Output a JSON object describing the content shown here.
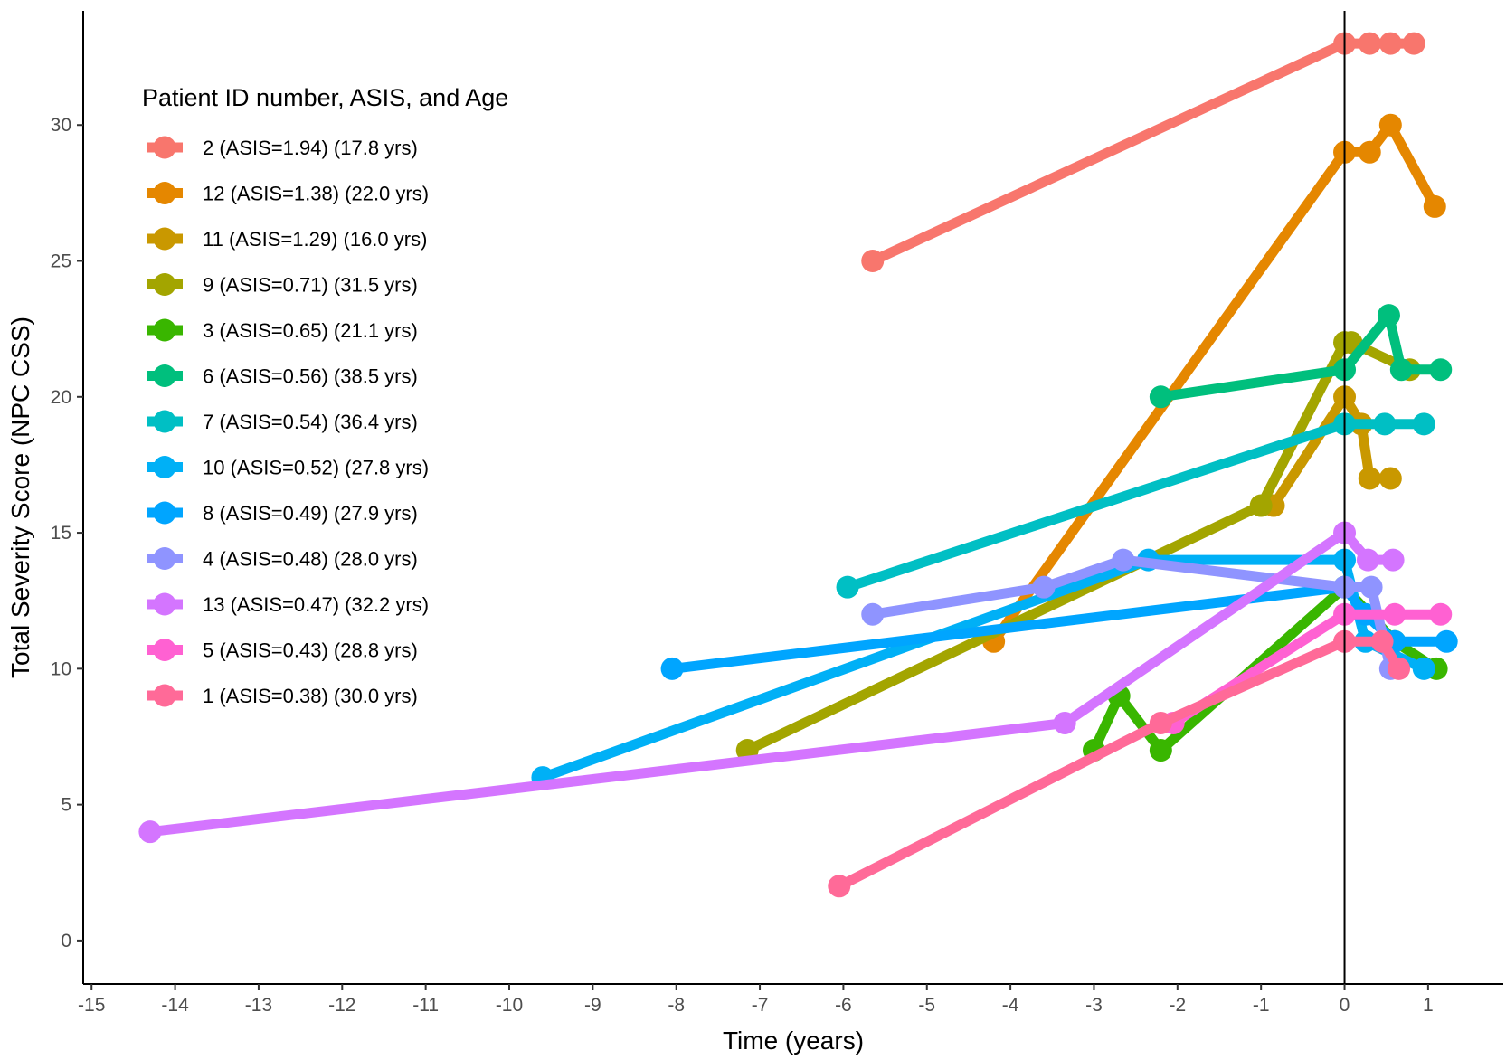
{
  "chart_data": {
    "type": "line",
    "xlabel": "Time (years)",
    "ylabel": "Total Severity Score (NPC CSS)",
    "xlim": [
      -15.1,
      1.9
    ],
    "ylim": [
      -1.6,
      34.2
    ],
    "x_ticks": [
      -15,
      -14,
      -13,
      -12,
      -11,
      -10,
      -9,
      -8,
      -7,
      -6,
      -5,
      -4,
      -3,
      -2,
      -1,
      0,
      1
    ],
    "y_ticks": [
      0,
      5,
      10,
      15,
      20,
      25,
      30
    ],
    "vline_x": 0,
    "grid": false,
    "legend": {
      "title": "Patient ID number, ASIS, and Age",
      "position": "top-left"
    },
    "series": [
      {
        "name": "2  (ASIS=1.94)  (17.8 yrs)",
        "color": "#F8766D",
        "x": [
          -5.65,
          0,
          0.3,
          0.55,
          0.83
        ],
        "y": [
          25,
          33,
          33,
          33,
          33
        ]
      },
      {
        "name": "12  (ASIS=1.38)  (22.0 yrs)",
        "color": "#E58700",
        "x": [
          -4.2,
          0,
          0.3,
          0.55,
          1.08
        ],
        "y": [
          11,
          29,
          29,
          30,
          27
        ]
      },
      {
        "name": "11  (ASIS=1.29)  (16.0 yrs)",
        "color": "#C99800",
        "x": [
          -0.85,
          0,
          0.2,
          0.3,
          0.55
        ],
        "y": [
          16,
          20,
          19,
          17,
          17
        ]
      },
      {
        "name": "9  (ASIS=0.71)  (31.5 yrs)",
        "color": "#A3A500",
        "x": [
          -7.15,
          -1.0,
          0,
          0.08,
          0.78
        ],
        "y": [
          7,
          16,
          22,
          22,
          21
        ]
      },
      {
        "name": "3  (ASIS=0.65)  (21.1 yrs)",
        "color": "#39B600",
        "x": [
          -3.0,
          -2.7,
          -2.2,
          0,
          0.6,
          1.1
        ],
        "y": [
          7,
          9,
          7,
          13,
          11,
          10
        ]
      },
      {
        "name": "6  (ASIS=0.56)  (38.5 yrs)",
        "color": "#00BF7D",
        "x": [
          -2.2,
          0,
          0.53,
          0.68,
          1.15
        ],
        "y": [
          20,
          21,
          23,
          21,
          21
        ]
      },
      {
        "name": "7  (ASIS=0.54)  (36.4 yrs)",
        "color": "#00BFC4",
        "x": [
          -5.95,
          0,
          0.48,
          0.95
        ],
        "y": [
          13,
          19,
          19,
          19
        ]
      },
      {
        "name": "10  (ASIS=0.52)  (27.8 yrs)",
        "color": "#00B0F6",
        "x": [
          -9.6,
          -2.35,
          0,
          0.25,
          0.95
        ],
        "y": [
          6,
          14,
          14,
          11,
          10
        ]
      },
      {
        "name": "8  (ASIS=0.49)  (27.9 yrs)",
        "color": "#00A5FF",
        "x": [
          -8.05,
          0,
          0.25,
          0.6,
          1.22
        ],
        "y": [
          10,
          13,
          12,
          11,
          11
        ]
      },
      {
        "name": "4  (ASIS=0.48)  (28.0 yrs)",
        "color": "#8F94FF",
        "x": [
          -5.65,
          -3.6,
          -2.65,
          0,
          0.32,
          0.55
        ],
        "y": [
          12,
          13,
          14,
          13,
          13,
          10
        ]
      },
      {
        "name": "13  (ASIS=0.47)  (32.2 yrs)",
        "color": "#D475FF",
        "x": [
          -14.3,
          -3.35,
          0,
          0.28,
          0.58
        ],
        "y": [
          4,
          8,
          15,
          14,
          14
        ]
      },
      {
        "name": "5  (ASIS=0.43)  (28.8 yrs)",
        "color": "#FF61D2",
        "x": [
          -2.05,
          0,
          0.6,
          1.15
        ],
        "y": [
          8,
          12,
          12,
          12
        ]
      },
      {
        "name": "1  (ASIS=0.38)  (30.0 yrs)",
        "color": "#FF6A98",
        "x": [
          -6.05,
          -2.2,
          0,
          0.45,
          0.65
        ],
        "y": [
          2,
          8,
          11,
          11,
          10
        ]
      }
    ]
  }
}
